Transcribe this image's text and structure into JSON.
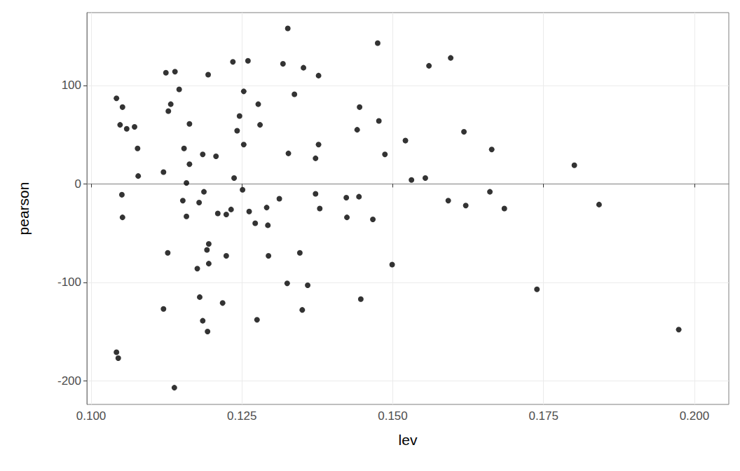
{
  "chart_data": {
    "type": "scatter",
    "x_label": "lev",
    "y_label": "pearson",
    "x": [
      0.1042,
      0.1048,
      0.1052,
      0.1059,
      0.1072,
      0.1077,
      0.1078,
      0.1051,
      0.1052,
      0.1042,
      0.1045,
      0.112,
      0.1124,
      0.1128,
      0.1132,
      0.1139,
      0.1146,
      0.1127,
      0.112,
      0.1138,
      0.1154,
      0.1163,
      0.1163,
      0.1158,
      0.1152,
      0.1158,
      0.1179,
      0.1185,
      0.1187,
      0.1194,
      0.1207,
      0.121,
      0.1224,
      0.1232,
      0.1235,
      0.1237,
      0.1242,
      0.1246,
      0.1251,
      0.1253,
      0.1253,
      0.126,
      0.1262,
      0.1272,
      0.1277,
      0.128,
      0.1291,
      0.1293,
      0.1294,
      0.1195,
      0.1192,
      0.1195,
      0.1176,
      0.118,
      0.1185,
      0.1193,
      0.1218,
      0.1224,
      0.1275,
      0.1312,
      0.1318,
      0.1327,
      0.1326,
      0.1337,
      0.1325,
      0.1346,
      0.135,
      0.1352,
      0.1359,
      0.1372,
      0.1372,
      0.1377,
      0.1377,
      0.1379,
      0.1423,
      0.1424,
      0.1444,
      0.1441,
      0.1445,
      0.1447,
      0.1467,
      0.1475,
      0.1477,
      0.1487,
      0.1499,
      0.1521,
      0.1531,
      0.1554,
      0.156,
      0.1592,
      0.1596,
      0.1618,
      0.1621,
      0.1661,
      0.1664,
      0.1685,
      0.1739,
      0.1801,
      0.1842,
      0.1974
    ],
    "values": [
      87,
      60,
      78,
      56,
      58,
      36,
      8,
      -11,
      -34,
      -171,
      -177,
      12,
      113,
      74,
      81,
      114,
      96,
      -70,
      -127,
      -207,
      36,
      61,
      20,
      1,
      -17,
      -33,
      -19,
      30,
      -8,
      111,
      28,
      -30,
      -31,
      -26,
      124,
      6,
      54,
      69,
      -6,
      94,
      40,
      125,
      -28,
      -40,
      81,
      60,
      -24,
      -42,
      -73,
      -61,
      -67,
      -81,
      -86,
      -115,
      -139,
      -150,
      -121,
      -73,
      -138,
      -15,
      122,
      31,
      158,
      91,
      -101,
      -70,
      -128,
      118,
      -103,
      26,
      -10,
      110,
      40,
      -25,
      -14,
      -34,
      -13,
      55,
      78,
      -117,
      -36,
      143,
      64,
      30,
      -82,
      44,
      4,
      6,
      120,
      -17,
      128,
      53,
      -22,
      -8,
      35,
      -25,
      -107,
      19,
      -21,
      -148
    ],
    "color": "#000000",
    "marker": "circle",
    "xlim": [
      0.0993,
      0.2057
    ],
    "xticks": [
      {
        "value": 0.1,
        "label": "0.100"
      },
      {
        "value": 0.125,
        "label": "0.125"
      },
      {
        "value": 0.15,
        "label": "0.150"
      },
      {
        "value": 0.175,
        "label": "0.175"
      },
      {
        "value": 0.2,
        "label": "0.200"
      }
    ],
    "ylim": [
      -224,
      174
    ],
    "yticks": [
      -200,
      -100,
      0,
      100
    ],
    "grid": true
  }
}
